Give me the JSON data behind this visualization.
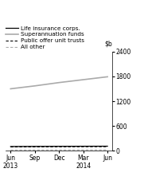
{
  "title": "",
  "ylim": [
    0,
    2400
  ],
  "yticks": [
    0,
    600,
    1200,
    1800,
    2400
  ],
  "x_labels": [
    "Jun\n2013",
    "Sep",
    "Dec",
    "Mar\n2014",
    "Jun"
  ],
  "x_positions": [
    0,
    1,
    2,
    3,
    4
  ],
  "series": {
    "life_insurance": {
      "label": "Life insurance corps.",
      "values": [
        105,
        108,
        110,
        112,
        113
      ],
      "color": "#000000",
      "linestyle": "-",
      "linewidth": 0.9
    },
    "superannuation": {
      "label": "Superannuation funds",
      "values": [
        1500,
        1570,
        1650,
        1720,
        1790
      ],
      "color": "#aaaaaa",
      "linestyle": "-",
      "linewidth": 1.2
    },
    "public_offer": {
      "label": "Public offer unit trusts",
      "values": [
        95,
        97,
        99,
        101,
        103
      ],
      "color": "#000000",
      "linestyle": "--",
      "linewidth": 0.8,
      "dashes": [
        3,
        2
      ]
    },
    "all_other": {
      "label": "All other",
      "values": [
        18,
        19,
        20,
        21,
        22
      ],
      "color": "#aaaaaa",
      "linestyle": "--",
      "linewidth": 0.8,
      "dashes": [
        3,
        2
      ]
    }
  },
  "legend_fontsize": 5.2,
  "tick_fontsize": 5.5,
  "background_color": "#ffffff"
}
